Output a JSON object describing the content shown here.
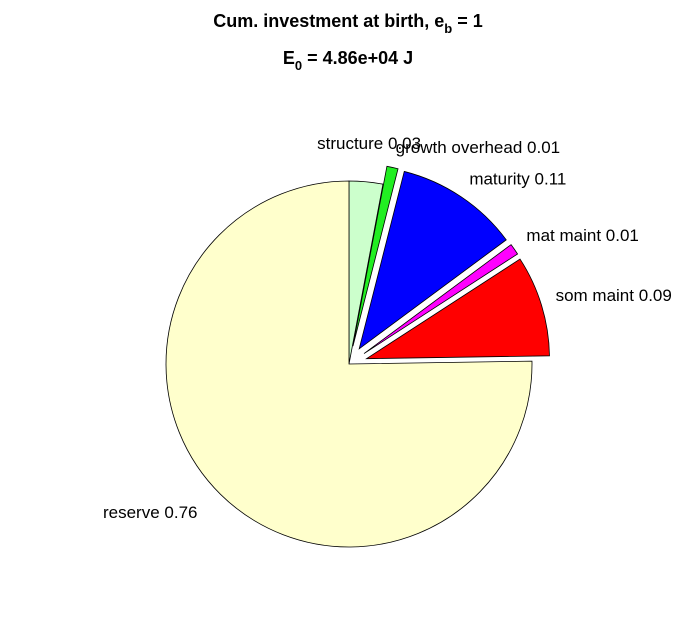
{
  "chart_data": {
    "type": "pie",
    "title": [
      {
        "text": "Cum. investment at birth, e"
      },
      {
        "text": "b",
        "sub": true
      },
      {
        "text": " = 1"
      }
    ],
    "subtitle": [
      {
        "text": "E"
      },
      {
        "text": "0",
        "sub": true
      },
      {
        "text": " = 4.86e+04 J"
      }
    ],
    "categories": [
      "structure",
      "growth overhead",
      "maturity",
      "mat maint",
      "som maint",
      "reserve"
    ],
    "values": [
      0.03,
      0.01,
      0.11,
      0.01,
      0.09,
      0.76
    ],
    "colors": [
      "#ccffcc",
      "#22ee22",
      "#0000ff",
      "#ff00ff",
      "#ff0000",
      "#ffffcc"
    ],
    "explode": [
      false,
      true,
      true,
      true,
      true,
      false
    ]
  }
}
